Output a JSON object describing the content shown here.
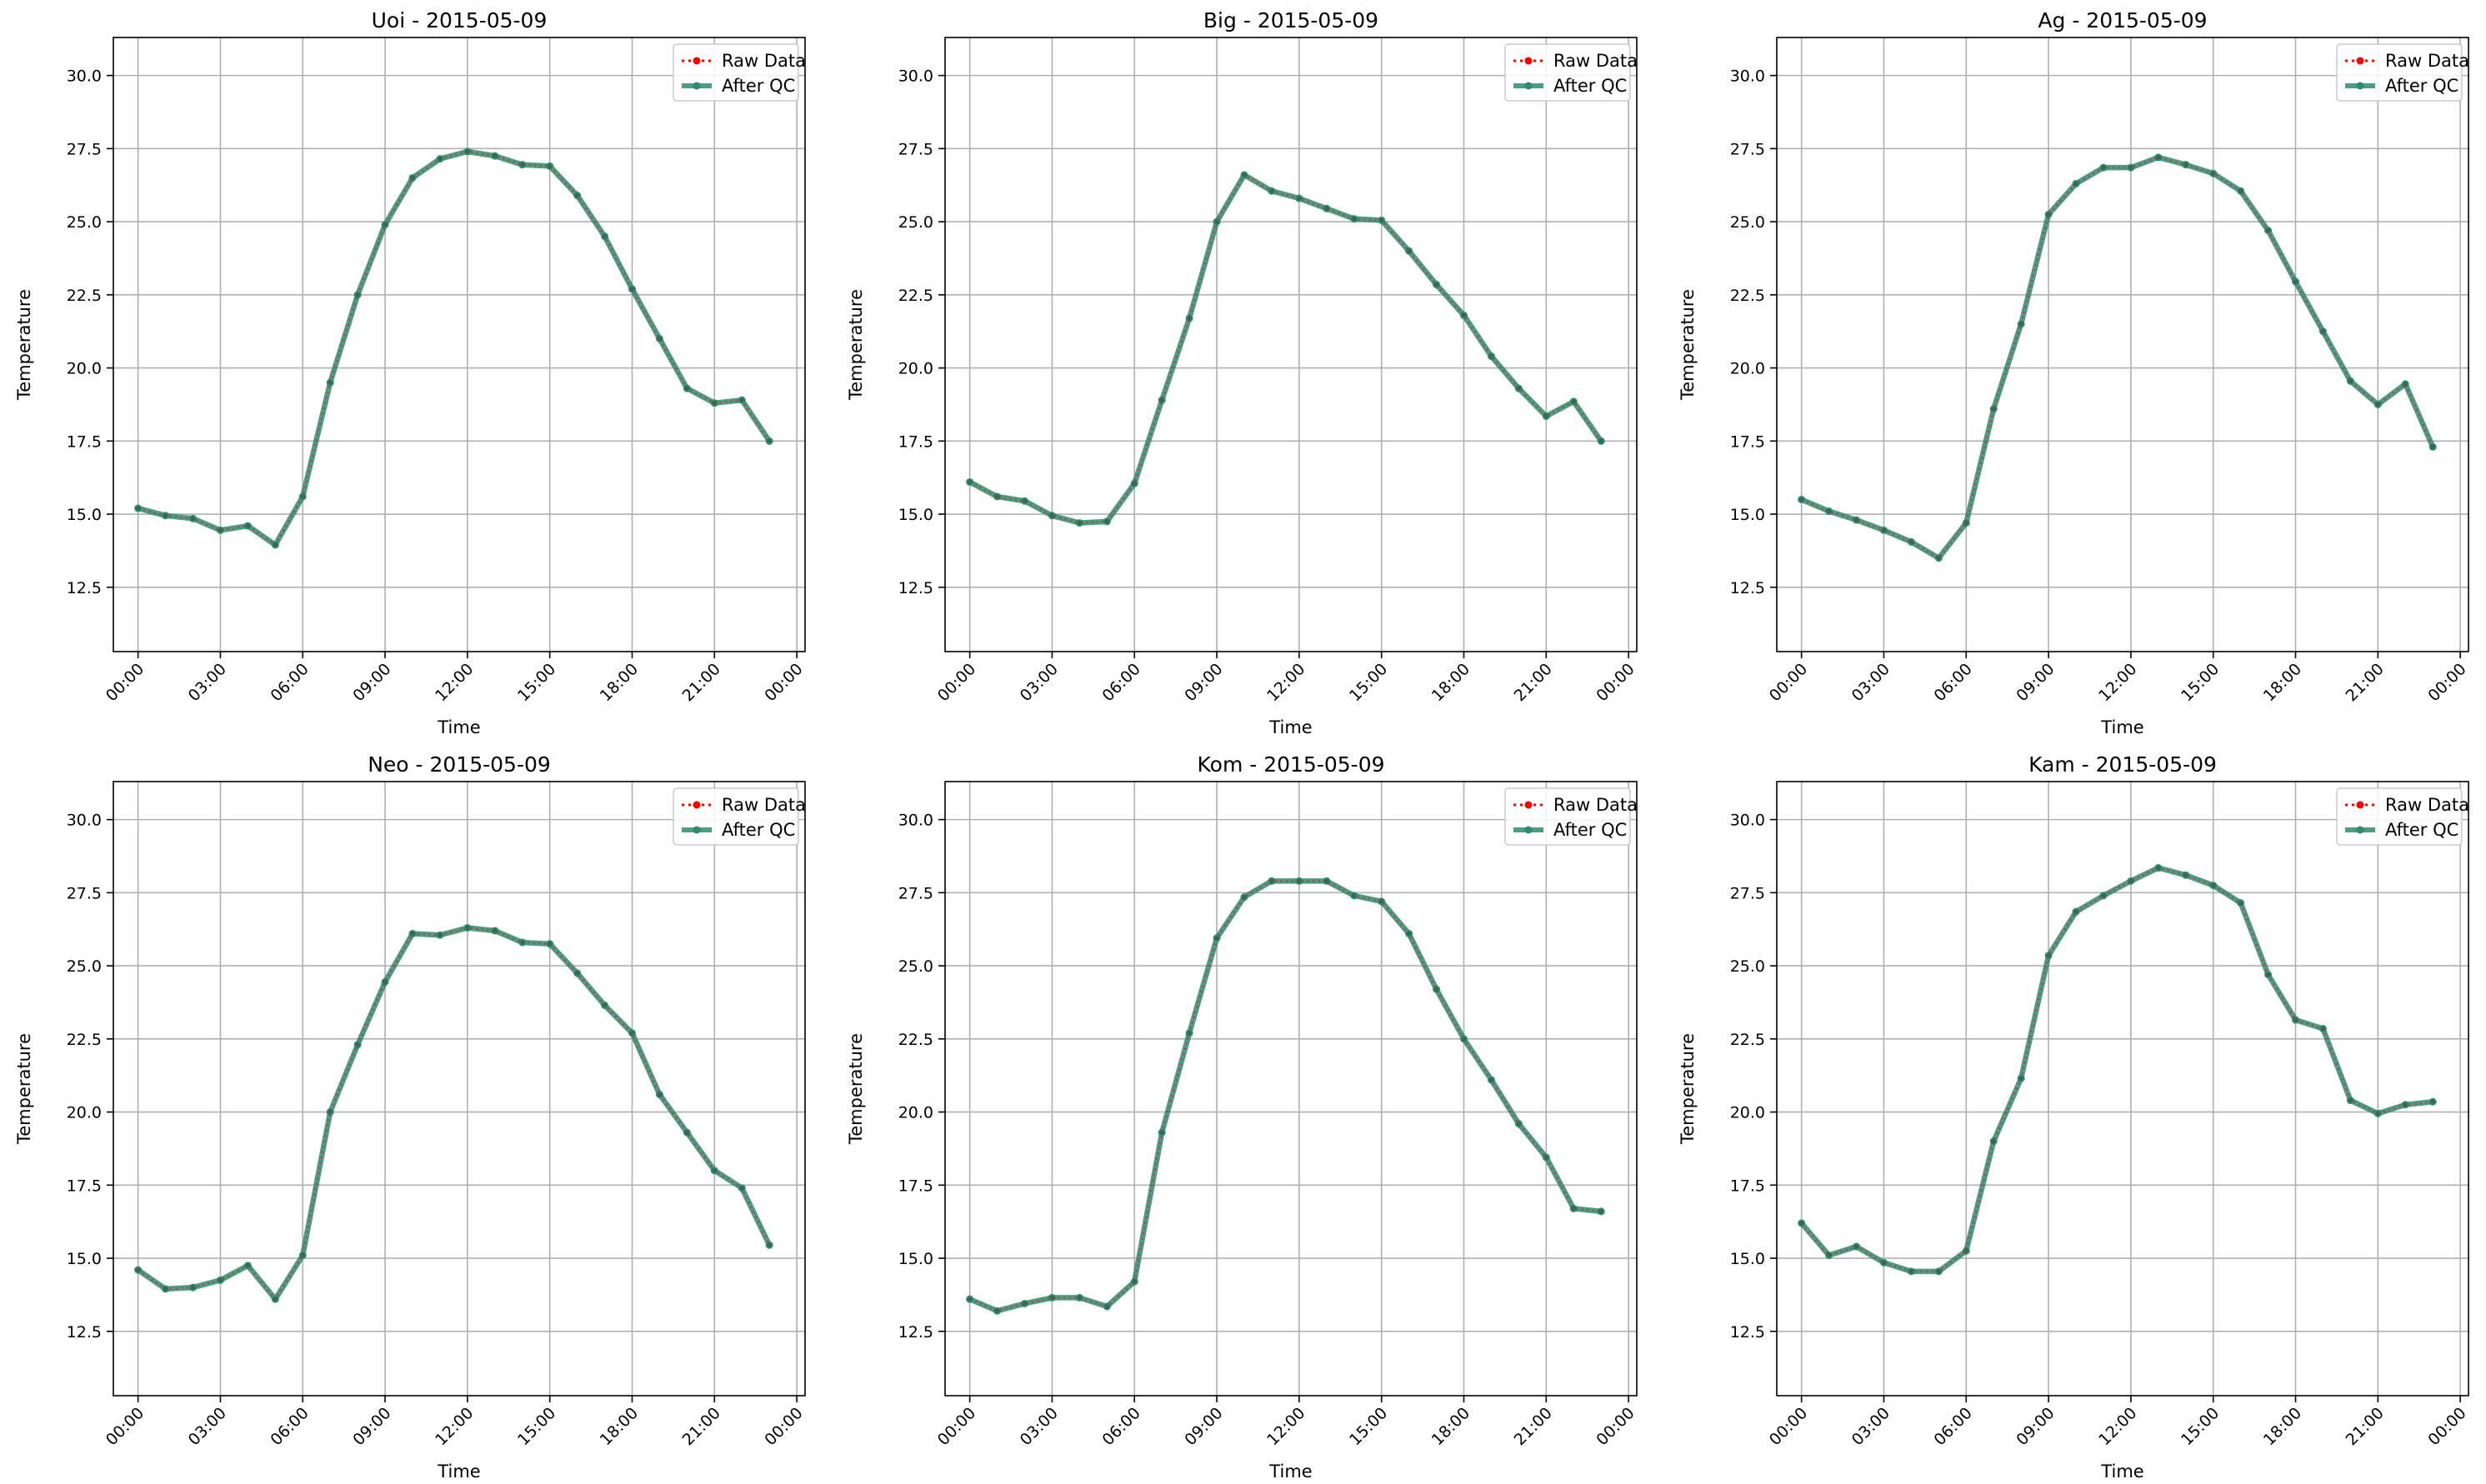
{
  "figure": {
    "colors": {
      "raw": "#ff0000",
      "qc": "#2e8b6e",
      "grid": "#b0b0b0",
      "axes": "#000000",
      "legend_border": "#cccccc"
    }
  },
  "chart_data": [
    {
      "type": "line",
      "title": "Uoi - 2015-05-09",
      "xlabel": "Time",
      "ylabel": "Temperature",
      "xticks": [
        "00:00",
        "03:00",
        "06:00",
        "09:00",
        "12:00",
        "15:00",
        "18:00",
        "21:00",
        "00:00"
      ],
      "yticks": [
        "12.5",
        "15.0",
        "17.5",
        "20.0",
        "22.5",
        "25.0",
        "27.5",
        "30.0"
      ],
      "ylim": [
        10.3,
        31.3
      ],
      "xlim": [
        -0.9,
        24.3
      ],
      "grid": true,
      "legend_position": "top-right",
      "x": [
        0,
        1,
        2,
        3,
        4,
        5,
        6,
        7,
        8,
        9,
        10,
        11,
        12,
        13,
        14,
        15,
        16,
        17,
        18,
        19,
        20,
        21,
        22,
        23
      ],
      "series": [
        {
          "name": "Raw Data",
          "values": [
            15.2,
            14.95,
            14.85,
            14.45,
            14.6,
            13.95,
            15.6,
            19.5,
            22.5,
            24.9,
            26.5,
            27.15,
            27.4,
            27.25,
            26.95,
            26.9,
            25.9,
            24.5,
            22.7,
            21.0,
            19.3,
            18.8,
            18.9,
            17.5
          ]
        },
        {
          "name": "After QC",
          "values": [
            15.2,
            14.95,
            14.85,
            14.45,
            14.6,
            13.95,
            15.6,
            19.5,
            22.5,
            24.9,
            26.5,
            27.15,
            27.4,
            27.25,
            26.95,
            26.9,
            25.9,
            24.5,
            22.7,
            21.0,
            19.3,
            18.8,
            18.9,
            17.5
          ]
        }
      ]
    },
    {
      "type": "line",
      "title": "Big - 2015-05-09",
      "xlabel": "Time",
      "ylabel": "Temperature",
      "xticks": [
        "00:00",
        "03:00",
        "06:00",
        "09:00",
        "12:00",
        "15:00",
        "18:00",
        "21:00",
        "00:00"
      ],
      "yticks": [
        "12.5",
        "15.0",
        "17.5",
        "20.0",
        "22.5",
        "25.0",
        "27.5",
        "30.0"
      ],
      "ylim": [
        10.3,
        31.3
      ],
      "xlim": [
        -0.9,
        24.3
      ],
      "grid": true,
      "legend_position": "top-right",
      "x": [
        0,
        1,
        2,
        3,
        4,
        5,
        6,
        7,
        8,
        9,
        10,
        11,
        12,
        13,
        14,
        15,
        16,
        17,
        18,
        19,
        20,
        21,
        22,
        23
      ],
      "series": [
        {
          "name": "Raw Data",
          "values": [
            16.1,
            15.6,
            15.45,
            14.95,
            14.7,
            14.75,
            16.05,
            18.9,
            21.7,
            25.0,
            26.6,
            26.05,
            25.8,
            25.45,
            25.1,
            25.05,
            24.0,
            22.85,
            21.8,
            20.4,
            19.3,
            18.35,
            18.85,
            17.5
          ]
        },
        {
          "name": "After QC",
          "values": [
            16.1,
            15.6,
            15.45,
            14.95,
            14.7,
            14.75,
            16.05,
            18.9,
            21.7,
            25.0,
            26.6,
            26.05,
            25.8,
            25.45,
            25.1,
            25.05,
            24.0,
            22.85,
            21.8,
            20.4,
            19.3,
            18.35,
            18.85,
            17.5
          ]
        }
      ]
    },
    {
      "type": "line",
      "title": "Ag - 2015-05-09",
      "xlabel": "Time",
      "ylabel": "Temperature",
      "xticks": [
        "00:00",
        "03:00",
        "06:00",
        "09:00",
        "12:00",
        "15:00",
        "18:00",
        "21:00",
        "00:00"
      ],
      "yticks": [
        "12.5",
        "15.0",
        "17.5",
        "20.0",
        "22.5",
        "25.0",
        "27.5",
        "30.0"
      ],
      "ylim": [
        10.3,
        31.3
      ],
      "xlim": [
        -0.9,
        24.3
      ],
      "grid": true,
      "legend_position": "top-right",
      "x": [
        0,
        1,
        2,
        3,
        4,
        5,
        6,
        7,
        8,
        9,
        10,
        11,
        12,
        13,
        14,
        15,
        16,
        17,
        18,
        19,
        20,
        21,
        22,
        23
      ],
      "series": [
        {
          "name": "Raw Data",
          "values": [
            15.5,
            15.1,
            14.8,
            14.45,
            14.05,
            13.5,
            14.7,
            18.6,
            21.5,
            25.25,
            26.3,
            26.85,
            26.85,
            27.2,
            26.95,
            26.65,
            26.05,
            24.7,
            22.95,
            21.25,
            19.55,
            18.75,
            19.45,
            17.3
          ]
        },
        {
          "name": "After QC",
          "values": [
            15.5,
            15.1,
            14.8,
            14.45,
            14.05,
            13.5,
            14.7,
            18.6,
            21.5,
            25.25,
            26.3,
            26.85,
            26.85,
            27.2,
            26.95,
            26.65,
            26.05,
            24.7,
            22.95,
            21.25,
            19.55,
            18.75,
            19.45,
            17.3
          ]
        }
      ]
    },
    {
      "type": "line",
      "title": "Neo - 2015-05-09",
      "xlabel": "Time",
      "ylabel": "Temperature",
      "xticks": [
        "00:00",
        "03:00",
        "06:00",
        "09:00",
        "12:00",
        "15:00",
        "18:00",
        "21:00",
        "00:00"
      ],
      "yticks": [
        "12.5",
        "15.0",
        "17.5",
        "20.0",
        "22.5",
        "25.0",
        "27.5",
        "30.0"
      ],
      "ylim": [
        10.3,
        31.3
      ],
      "xlim": [
        -0.9,
        24.3
      ],
      "grid": true,
      "legend_position": "top-right",
      "x": [
        0,
        1,
        2,
        3,
        4,
        5,
        6,
        7,
        8,
        9,
        10,
        11,
        12,
        13,
        14,
        15,
        16,
        17,
        18,
        19,
        20,
        21,
        22,
        23
      ],
      "series": [
        {
          "name": "Raw Data",
          "values": [
            14.6,
            13.95,
            14.0,
            14.25,
            14.75,
            13.6,
            15.1,
            20.0,
            22.3,
            24.45,
            26.1,
            26.05,
            26.3,
            26.2,
            25.8,
            25.75,
            24.75,
            23.65,
            22.7,
            20.6,
            19.3,
            18.0,
            17.4,
            15.45
          ]
        },
        {
          "name": "After QC",
          "values": [
            14.6,
            13.95,
            14.0,
            14.25,
            14.75,
            13.6,
            15.1,
            20.0,
            22.3,
            24.45,
            26.1,
            26.05,
            26.3,
            26.2,
            25.8,
            25.75,
            24.75,
            23.65,
            22.7,
            20.6,
            19.3,
            18.0,
            17.4,
            15.45
          ]
        }
      ]
    },
    {
      "type": "line",
      "title": "Kom - 2015-05-09",
      "xlabel": "Time",
      "ylabel": "Temperature",
      "xticks": [
        "00:00",
        "03:00",
        "06:00",
        "09:00",
        "12:00",
        "15:00",
        "18:00",
        "21:00",
        "00:00"
      ],
      "yticks": [
        "12.5",
        "15.0",
        "17.5",
        "20.0",
        "22.5",
        "25.0",
        "27.5",
        "30.0"
      ],
      "ylim": [
        10.3,
        31.3
      ],
      "xlim": [
        -0.9,
        24.3
      ],
      "grid": true,
      "legend_position": "top-right",
      "x": [
        0,
        1,
        2,
        3,
        4,
        5,
        6,
        7,
        8,
        9,
        10,
        11,
        12,
        13,
        14,
        15,
        16,
        17,
        18,
        19,
        20,
        21,
        22,
        23
      ],
      "series": [
        {
          "name": "Raw Data",
          "values": [
            13.6,
            13.2,
            13.45,
            13.65,
            13.65,
            13.35,
            14.2,
            19.3,
            22.7,
            25.95,
            27.35,
            27.9,
            27.9,
            27.9,
            27.4,
            27.2,
            26.1,
            24.2,
            22.5,
            21.1,
            19.6,
            18.45,
            16.7,
            16.6
          ]
        },
        {
          "name": "After QC",
          "values": [
            13.6,
            13.2,
            13.45,
            13.65,
            13.65,
            13.35,
            14.2,
            19.3,
            22.7,
            25.95,
            27.35,
            27.9,
            27.9,
            27.9,
            27.4,
            27.2,
            26.1,
            24.2,
            22.5,
            21.1,
            19.6,
            18.45,
            16.7,
            16.6
          ]
        }
      ]
    },
    {
      "type": "line",
      "title": "Kam - 2015-05-09",
      "xlabel": "Time",
      "ylabel": "Temperature",
      "xticks": [
        "00:00",
        "03:00",
        "06:00",
        "09:00",
        "12:00",
        "15:00",
        "18:00",
        "21:00",
        "00:00"
      ],
      "yticks": [
        "12.5",
        "15.0",
        "17.5",
        "20.0",
        "22.5",
        "25.0",
        "27.5",
        "30.0"
      ],
      "ylim": [
        10.3,
        31.3
      ],
      "xlim": [
        -0.9,
        24.3
      ],
      "grid": true,
      "legend_position": "top-right",
      "x": [
        0,
        1,
        2,
        3,
        4,
        5,
        6,
        7,
        8,
        9,
        10,
        11,
        12,
        13,
        14,
        15,
        16,
        17,
        18,
        19,
        20,
        21,
        22,
        23
      ],
      "series": [
        {
          "name": "Raw Data",
          "values": [
            16.2,
            15.1,
            15.4,
            14.85,
            14.55,
            14.55,
            15.25,
            19.0,
            21.15,
            25.35,
            26.85,
            27.4,
            27.9,
            28.35,
            28.1,
            27.75,
            27.15,
            24.7,
            23.15,
            22.85,
            20.4,
            19.95,
            20.25,
            20.35
          ]
        },
        {
          "name": "After QC",
          "values": [
            16.2,
            15.1,
            15.4,
            14.85,
            14.55,
            14.55,
            15.25,
            19.0,
            21.15,
            25.35,
            26.85,
            27.4,
            27.9,
            28.35,
            28.1,
            27.75,
            27.15,
            24.7,
            23.15,
            22.85,
            20.4,
            19.95,
            20.25,
            20.35
          ]
        }
      ]
    }
  ]
}
